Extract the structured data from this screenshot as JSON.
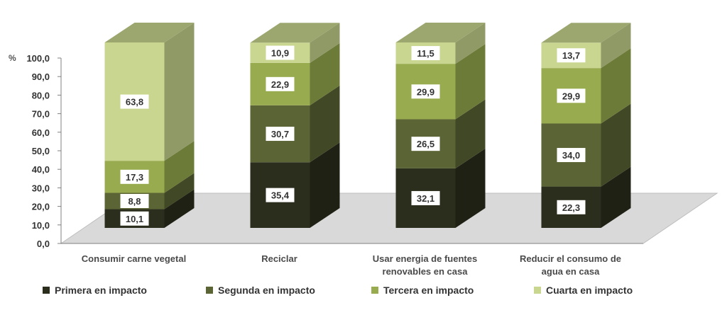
{
  "chart_data": {
    "type": "bar",
    "stacked": true,
    "three_d": true,
    "unit_label": "%",
    "ylim": [
      0,
      100
    ],
    "yticks": [
      "0,0",
      "10,0",
      "20,0",
      "30,0",
      "40,0",
      "50,0",
      "60,0",
      "70,0",
      "80,0",
      "90,0",
      "100,0"
    ],
    "categories": [
      [
        "Consumir carne vegetal"
      ],
      [
        "Reciclar"
      ],
      [
        "Usar energia de fuentes",
        "renovables en casa"
      ],
      [
        "Reducir el consumo de",
        "agua en casa"
      ]
    ],
    "series": [
      {
        "name": "Primera en impacto",
        "color": "#2b2e1c",
        "values": [
          10.1,
          35.4,
          32.1,
          22.3
        ],
        "labels": [
          "10,1",
          "35,4",
          "32,1",
          "22,3"
        ]
      },
      {
        "name": "Segunda en impacto",
        "color": "#5a6434",
        "values": [
          8.8,
          30.7,
          26.5,
          34.0
        ],
        "labels": [
          "8,8",
          "30,7",
          "26,5",
          "34,0"
        ]
      },
      {
        "name": "Tercera en impacto",
        "color": "#98ab4e",
        "values": [
          17.3,
          22.9,
          29.9,
          29.9
        ],
        "labels": [
          "17,3",
          "22,9",
          "29,9",
          "29,9"
        ]
      },
      {
        "name": "Cuarta en impacto",
        "color": "#c8d68f",
        "values": [
          63.8,
          10.9,
          11.5,
          13.7
        ],
        "labels": [
          "63,8",
          "10,9",
          "11,5",
          "13,7"
        ]
      }
    ],
    "legend_position": "bottom",
    "grid": false
  }
}
